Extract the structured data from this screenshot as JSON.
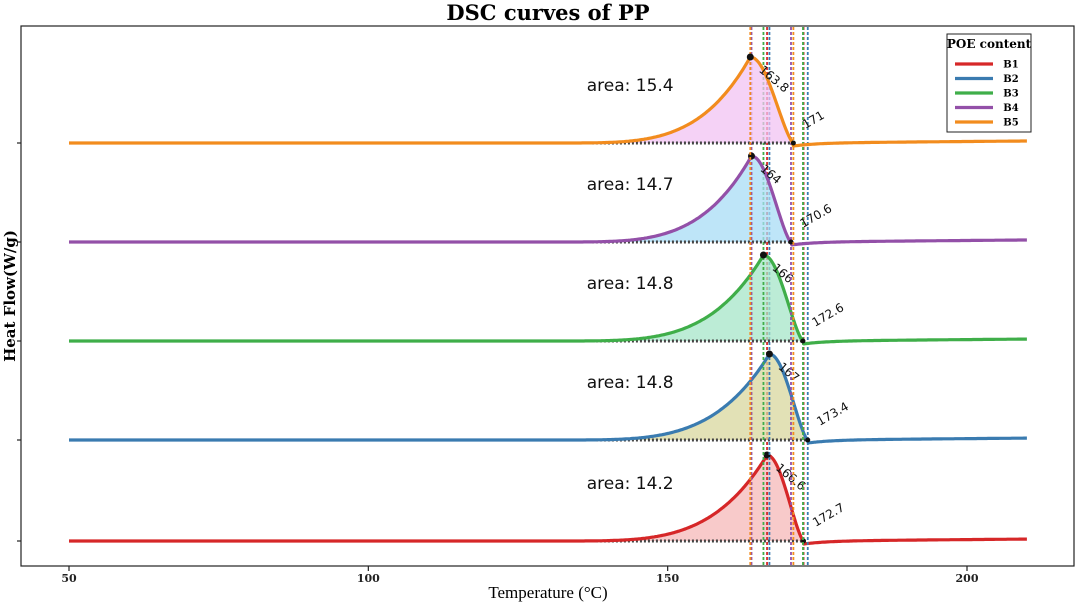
{
  "chart_data": {
    "type": "line",
    "title": "DSC curves of PP",
    "xlabel": "Temperature (°C)",
    "ylabel": "Heat Flow(W/g)",
    "xlim": [
      47,
      215
    ],
    "xticks": [
      50,
      100,
      150,
      200
    ],
    "legend": {
      "title": "POE content",
      "position": "top-right"
    },
    "series": [
      {
        "name": "B1",
        "color": "#d62728",
        "fill": "#f6b8b8",
        "peak_T": 166.6,
        "end_T": 172.7,
        "onset_T": 130,
        "area": 14.2,
        "area_label": "area: 14.2",
        "peak_label": "166.6",
        "end_label": "172.7",
        "peak_height": 1.0
      },
      {
        "name": "B2",
        "color": "#3a7bb0",
        "fill": "#d8d79e",
        "peak_T": 167.0,
        "end_T": 173.4,
        "onset_T": 130,
        "area": 14.8,
        "area_label": "area: 14.8",
        "peak_label": "167",
        "end_label": "173.4",
        "peak_height": 1.0
      },
      {
        "name": "B3",
        "color": "#3fae49",
        "fill": "#a6e5c8",
        "peak_T": 166.0,
        "end_T": 172.6,
        "onset_T": 130,
        "area": 14.8,
        "area_label": "area: 14.8",
        "peak_label": "166",
        "end_label": "172.6",
        "peak_height": 1.0
      },
      {
        "name": "B4",
        "color": "#9350a8",
        "fill": "#a8dcf5",
        "peak_T": 164.0,
        "end_T": 170.6,
        "onset_T": 130,
        "area": 14.7,
        "area_label": "area: 14.7",
        "peak_label": "164",
        "end_label": "170.6",
        "peak_height": 1.0
      },
      {
        "name": "B5",
        "color": "#f28c1e",
        "fill": "#f1c3f3",
        "peak_T": 163.8,
        "end_T": 171.0,
        "onset_T": 130,
        "area": 15.4,
        "area_label": "area: 15.4",
        "peak_label": "163.8",
        "end_label": "171",
        "peak_height": 1.0
      }
    ],
    "x_range_of_curves": [
      50,
      210
    ],
    "grid": false
  }
}
